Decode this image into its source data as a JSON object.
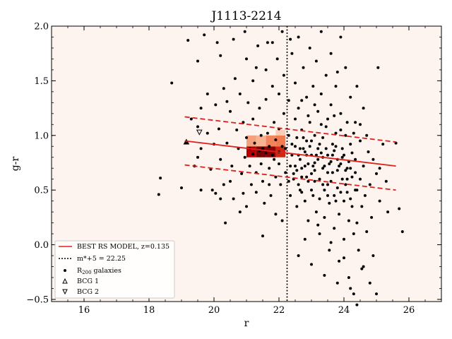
{
  "chart_data": {
    "type": "scatter",
    "title": "J1113-2214",
    "xlabel": "r",
    "ylabel": "g-r",
    "xlim": [
      15,
      27
    ],
    "ylim": [
      -0.52,
      2.0
    ],
    "xticks": [
      16,
      18,
      20,
      22,
      24,
      26
    ],
    "yticks": [
      -0.5,
      0.0,
      0.5,
      1.0,
      1.5,
      2.0
    ],
    "xtick_labels": [
      "16",
      "18",
      "20",
      "22",
      "24",
      "26"
    ],
    "ytick_labels": [
      "−0.5",
      "0.0",
      "0.5",
      "1.0",
      "1.5",
      "2.0"
    ],
    "background_color": "#fdf3ef",
    "legend_position": "lower-left",
    "rs_model": {
      "label": "BEST RS MODEL, z=0.135",
      "color": "#e0201a",
      "x": [
        19.1,
        25.6
      ],
      "y": [
        0.95,
        0.72
      ],
      "upper_y": [
        1.17,
        0.94
      ],
      "lower_y": [
        0.73,
        0.5
      ]
    },
    "mstar_line": {
      "label": "m*+5 = 22.25",
      "x": 22.25
    },
    "galaxies_label_main": "R",
    "galaxies_label_sub": "200",
    "galaxies_label_rest": " galaxies",
    "bcg1": {
      "label": "BCG 1",
      "x": 19.15,
      "y": 0.94
    },
    "bcg2": {
      "label": "BCG 2",
      "x": 19.55,
      "y": 1.03
    },
    "density_cells": [
      {
        "x0": 21.0,
        "x1": 21.3,
        "y0": 0.8,
        "y1": 0.9,
        "color": "#b80000"
      },
      {
        "x0": 21.3,
        "x1": 21.6,
        "y0": 0.8,
        "y1": 0.9,
        "color": "#7a0000"
      },
      {
        "x0": 21.6,
        "x1": 21.9,
        "y0": 0.8,
        "y1": 0.9,
        "color": "#8e0000"
      },
      {
        "x0": 21.9,
        "x1": 22.2,
        "y0": 0.8,
        "y1": 0.9,
        "color": "#d02510"
      },
      {
        "x0": 21.0,
        "x1": 21.3,
        "y0": 0.9,
        "y1": 1.0,
        "color": "#f4a07d"
      },
      {
        "x0": 21.3,
        "x1": 21.6,
        "y0": 0.9,
        "y1": 1.0,
        "color": "#f7b292"
      },
      {
        "x0": 21.6,
        "x1": 21.9,
        "y0": 0.9,
        "y1": 1.0,
        "color": "#f1845a"
      },
      {
        "x0": 21.9,
        "x1": 22.2,
        "y0": 0.9,
        "y1": 1.0,
        "color": "#f27b50"
      },
      {
        "x0": 21.9,
        "x1": 22.2,
        "y0": 1.0,
        "y1": 1.05,
        "color": "#fbcdb6"
      }
    ],
    "galaxies": [
      [
        18.7,
        1.48
      ],
      [
        18.35,
        0.61
      ],
      [
        18.3,
        0.46
      ],
      [
        19.0,
        0.52
      ],
      [
        19.2,
        1.87
      ],
      [
        19.5,
        1.68
      ],
      [
        19.7,
        1.92
      ],
      [
        19.6,
        1.25
      ],
      [
        19.5,
        1.08
      ],
      [
        19.8,
        1.02
      ],
      [
        19.6,
        0.88
      ],
      [
        19.5,
        0.8
      ],
      [
        19.9,
        0.69
      ],
      [
        19.6,
        0.5
      ],
      [
        19.95,
        0.5
      ],
      [
        20.05,
        0.47
      ],
      [
        20.2,
        0.42
      ],
      [
        20.3,
        0.55
      ],
      [
        19.8,
        1.38
      ],
      [
        20.05,
        1.28
      ],
      [
        20.2,
        1.73
      ],
      [
        20.1,
        1.85
      ],
      [
        20.3,
        1.43
      ],
      [
        20.4,
        1.31
      ],
      [
        20.15,
        1.06
      ],
      [
        20.4,
        0.93
      ],
      [
        20.2,
        0.78
      ],
      [
        20.55,
        0.72
      ],
      [
        20.5,
        0.58
      ],
      [
        20.35,
        0.2
      ],
      [
        20.6,
        1.88
      ],
      [
        20.65,
        1.52
      ],
      [
        20.7,
        1.05
      ],
      [
        20.75,
        0.88
      ],
      [
        20.6,
        0.42
      ],
      [
        20.8,
        1.38
      ],
      [
        20.9,
        1.12
      ],
      [
        20.85,
        0.65
      ],
      [
        20.9,
        0.47
      ],
      [
        20.8,
        0.3
      ],
      [
        20.95,
        1.95
      ],
      [
        21.0,
        1.7
      ],
      [
        21.05,
        1.3
      ],
      [
        21.0,
        0.98
      ],
      [
        21.1,
        0.72
      ],
      [
        21.15,
        0.55
      ],
      [
        21.0,
        0.35
      ],
      [
        21.2,
        1.5
      ],
      [
        21.2,
        1.15
      ],
      [
        21.25,
        0.93
      ],
      [
        21.3,
        0.66
      ],
      [
        21.3,
        0.48
      ],
      [
        21.35,
        1.82
      ],
      [
        21.4,
        1.25
      ],
      [
        21.45,
        1.0
      ],
      [
        21.45,
        0.74
      ],
      [
        21.5,
        0.58
      ],
      [
        21.55,
        0.38
      ],
      [
        21.5,
        0.08
      ],
      [
        21.6,
        1.6
      ],
      [
        21.6,
        1.33
      ],
      [
        21.65,
        1.02
      ],
      [
        21.7,
        0.7
      ],
      [
        21.7,
        0.55
      ],
      [
        21.75,
        0.45
      ],
      [
        21.8,
        1.85
      ],
      [
        21.8,
        1.45
      ],
      [
        21.85,
        1.12
      ],
      [
        21.85,
        0.78
      ],
      [
        21.9,
        0.62
      ],
      [
        21.9,
        0.28
      ],
      [
        21.95,
        1.7
      ],
      [
        22.0,
        1.38
      ],
      [
        22.0,
        1.06
      ],
      [
        22.0,
        0.74
      ],
      [
        22.05,
        0.55
      ],
      [
        22.1,
        0.22
      ],
      [
        22.1,
        1.95
      ],
      [
        22.15,
        1.55
      ],
      [
        22.15,
        1.2
      ],
      [
        22.2,
        0.88
      ],
      [
        22.2,
        0.66
      ],
      [
        22.3,
        1.32
      ],
      [
        22.3,
        1.0
      ],
      [
        22.35,
        0.72
      ],
      [
        22.35,
        0.45
      ],
      [
        22.4,
        1.75
      ],
      [
        22.4,
        0.82
      ],
      [
        22.45,
        0.6
      ],
      [
        22.5,
        1.48
      ],
      [
        22.5,
        1.15
      ],
      [
        22.5,
        0.9
      ],
      [
        22.55,
        0.68
      ],
      [
        22.55,
        0.35
      ],
      [
        22.6,
        1.9
      ],
      [
        22.6,
        1.25
      ],
      [
        22.65,
        0.78
      ],
      [
        22.65,
        0.5
      ],
      [
        22.7,
        1.05
      ],
      [
        22.7,
        0.62
      ],
      [
        22.75,
        1.62
      ],
      [
        22.75,
        0.88
      ],
      [
        22.8,
        0.72
      ],
      [
        22.8,
        0.4
      ],
      [
        22.85,
        1.35
      ],
      [
        22.85,
        0.95
      ],
      [
        22.9,
        0.58
      ],
      [
        22.9,
        0.22
      ],
      [
        22.95,
        1.8
      ],
      [
        22.95,
        1.12
      ],
      [
        23.0,
        0.82
      ],
      [
        23.0,
        0.65
      ],
      [
        23.05,
        0.45
      ],
      [
        23.05,
        1.45
      ],
      [
        23.1,
        1.0
      ],
      [
        23.1,
        0.75
      ],
      [
        23.15,
        0.3
      ],
      [
        23.15,
        1.68
      ],
      [
        23.2,
        1.22
      ],
      [
        23.2,
        0.88
      ],
      [
        23.25,
        0.6
      ],
      [
        23.25,
        0.1
      ],
      [
        23.3,
        1.95
      ],
      [
        23.3,
        1.38
      ],
      [
        23.35,
        0.98
      ],
      [
        23.35,
        0.7
      ],
      [
        23.4,
        0.5
      ],
      [
        23.4,
        0.25
      ],
      [
        23.45,
        1.55
      ],
      [
        23.45,
        1.08
      ],
      [
        23.5,
        0.82
      ],
      [
        23.5,
        0.55
      ],
      [
        23.55,
        0.38
      ],
      [
        23.55,
        -0.05
      ],
      [
        23.6,
        1.75
      ],
      [
        23.6,
        1.28
      ],
      [
        23.65,
        0.92
      ],
      [
        23.65,
        0.66
      ],
      [
        23.7,
        0.45
      ],
      [
        23.7,
        0.15
      ],
      [
        23.75,
        1.45
      ],
      [
        23.75,
        1.02
      ],
      [
        23.8,
        0.78
      ],
      [
        23.8,
        0.52
      ],
      [
        23.85,
        0.28
      ],
      [
        23.85,
        -0.15
      ],
      [
        23.9,
        1.9
      ],
      [
        23.9,
        1.2
      ],
      [
        23.95,
        0.88
      ],
      [
        23.95,
        0.6
      ],
      [
        24.0,
        0.4
      ],
      [
        24.0,
        0.05
      ],
      [
        24.05,
        1.62
      ],
      [
        24.05,
        1.0
      ],
      [
        24.1,
        0.7
      ],
      [
        24.1,
        0.48
      ],
      [
        24.15,
        0.22
      ],
      [
        24.15,
        -0.3
      ],
      [
        24.2,
        1.35
      ],
      [
        24.2,
        0.92
      ],
      [
        24.25,
        0.62
      ],
      [
        24.25,
        0.35
      ],
      [
        24.3,
        0.1
      ],
      [
        24.3,
        -0.45
      ],
      [
        24.35,
        1.12
      ],
      [
        24.35,
        0.78
      ],
      [
        24.4,
        0.5
      ],
      [
        24.4,
        0.2
      ],
      [
        24.45,
        -0.05
      ],
      [
        24.5,
        0.95
      ],
      [
        24.5,
        0.6
      ],
      [
        24.55,
        0.35
      ],
      [
        24.55,
        -0.22
      ],
      [
        24.6,
        1.25
      ],
      [
        24.6,
        0.72
      ],
      [
        24.65,
        0.45
      ],
      [
        24.7,
        0.12
      ],
      [
        24.75,
        0.85
      ],
      [
        24.8,
        0.55
      ],
      [
        24.85,
        0.25
      ],
      [
        24.9,
        -0.1
      ],
      [
        25.0,
        0.65
      ],
      [
        25.05,
        1.62
      ],
      [
        25.1,
        0.4
      ],
      [
        25.2,
        0.92
      ],
      [
        25.35,
        0.3
      ],
      [
        25.6,
        0.93
      ],
      [
        25.7,
        0.33
      ],
      [
        25.8,
        0.12
      ],
      [
        24.4,
        -0.55
      ],
      [
        22.5,
        0.72
      ],
      [
        22.6,
        0.82
      ],
      [
        22.7,
        0.7
      ],
      [
        22.8,
        0.85
      ],
      [
        22.9,
        0.74
      ],
      [
        23.0,
        0.95
      ],
      [
        23.1,
        0.68
      ],
      [
        23.2,
        0.78
      ],
      [
        23.3,
        0.84
      ],
      [
        23.4,
        0.72
      ],
      [
        23.5,
        0.66
      ],
      [
        23.6,
        0.76
      ],
      [
        23.7,
        0.86
      ],
      [
        23.8,
        0.68
      ],
      [
        23.9,
        0.74
      ],
      [
        24.0,
        0.82
      ],
      [
        24.1,
        0.6
      ],
      [
        24.2,
        0.7
      ],
      [
        22.4,
        0.92
      ],
      [
        22.55,
        0.98
      ],
      [
        22.65,
        0.88
      ],
      [
        22.75,
        0.98
      ],
      [
        22.85,
        0.82
      ],
      [
        22.95,
        0.9
      ],
      [
        23.05,
        0.72
      ],
      [
        23.15,
        0.82
      ],
      [
        23.25,
        0.92
      ],
      [
        23.35,
        0.8
      ],
      [
        23.45,
        0.88
      ],
      [
        23.55,
        0.74
      ],
      [
        23.65,
        0.82
      ],
      [
        23.75,
        0.9
      ],
      [
        23.85,
        0.72
      ],
      [
        23.95,
        0.8
      ],
      [
        24.05,
        0.68
      ],
      [
        24.15,
        0.76
      ],
      [
        24.25,
        0.84
      ],
      [
        24.35,
        0.66
      ],
      [
        22.3,
        0.58
      ],
      [
        22.45,
        0.65
      ],
      [
        22.6,
        0.55
      ],
      [
        22.7,
        0.48
      ],
      [
        22.85,
        0.62
      ],
      [
        23.0,
        0.5
      ],
      [
        23.1,
        0.58
      ],
      [
        23.25,
        0.42
      ],
      [
        23.35,
        0.55
      ],
      [
        23.5,
        0.45
      ],
      [
        23.6,
        0.58
      ],
      [
        23.75,
        0.4
      ],
      [
        23.9,
        0.48
      ],
      [
        24.05,
        0.55
      ],
      [
        24.2,
        0.42
      ],
      [
        24.35,
        0.5
      ],
      [
        21.2,
        0.83
      ],
      [
        21.4,
        0.86
      ],
      [
        21.6,
        0.84
      ],
      [
        21.8,
        0.82
      ],
      [
        22.0,
        0.85
      ],
      [
        21.1,
        0.88
      ],
      [
        21.5,
        0.88
      ],
      [
        21.7,
        0.9
      ],
      [
        21.9,
        0.96
      ],
      [
        22.1,
        0.9
      ],
      [
        23.3,
        1.1
      ],
      [
        23.5,
        1.15
      ],
      [
        23.7,
        1.18
      ],
      [
        23.9,
        1.05
      ],
      [
        24.1,
        1.12
      ],
      [
        24.3,
        1.02
      ],
      [
        22.9,
        1.18
      ],
      [
        23.1,
        1.28
      ],
      [
        22.7,
        1.32
      ],
      [
        24.5,
        1.1
      ],
      [
        24.7,
        1.0
      ],
      [
        24.9,
        0.78
      ],
      [
        25.1,
        0.7
      ],
      [
        25.3,
        0.58
      ],
      [
        19.3,
        1.15
      ],
      [
        19.4,
        0.72
      ],
      [
        20.0,
        0.92
      ],
      [
        20.5,
        1.22
      ],
      [
        20.95,
        0.8
      ],
      [
        21.3,
        1.62
      ],
      [
        21.65,
        1.85
      ],
      [
        22.35,
        1.88
      ],
      [
        23.8,
        1.58
      ],
      [
        24.4,
        1.45
      ],
      [
        22.6,
        -0.1
      ],
      [
        22.8,
        0.05
      ],
      [
        23.0,
        -0.18
      ],
      [
        23.2,
        0.18
      ],
      [
        23.4,
        -0.28
      ],
      [
        23.6,
        0.02
      ],
      [
        23.8,
        -0.35
      ],
      [
        24.0,
        -0.12
      ],
      [
        24.2,
        -0.4
      ],
      [
        24.6,
        -0.2
      ],
      [
        24.8,
        -0.35
      ],
      [
        25.0,
        -0.45
      ]
    ]
  }
}
